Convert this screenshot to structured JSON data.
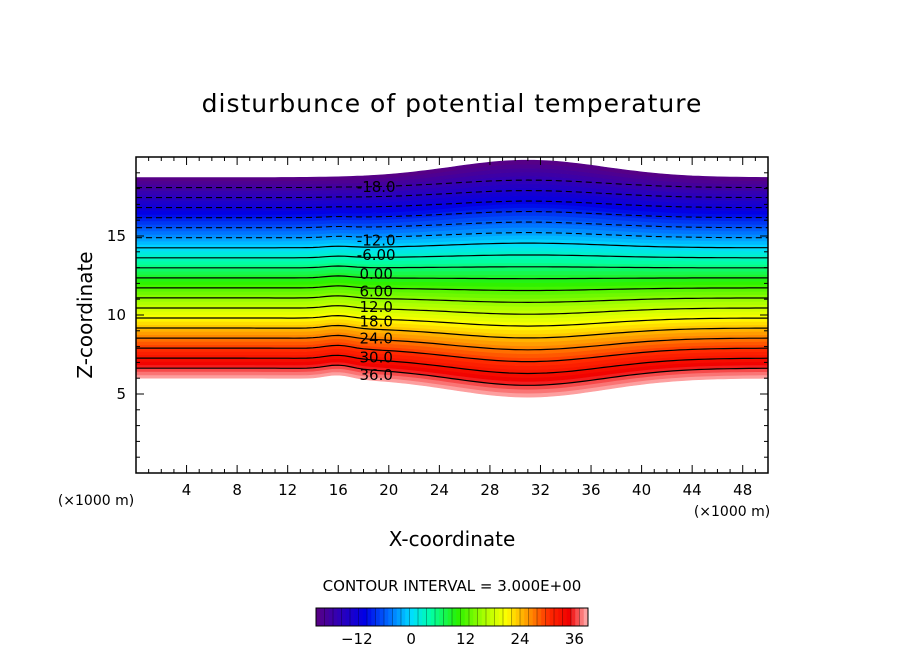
{
  "chart_data": {
    "type": "contour",
    "title": "disturbunce of potential temperature",
    "xlabel": "X-coordinate",
    "ylabel": "Z-coordinate",
    "x_unit_left": "(×1000 m)",
    "x_unit_right": "(×1000 m)",
    "xlim": [
      0,
      50
    ],
    "ylim": [
      0,
      20
    ],
    "x_ticks": [
      4,
      8,
      12,
      16,
      20,
      24,
      28,
      32,
      36,
      40,
      44,
      48
    ],
    "y_ticks": [
      5,
      10,
      15
    ],
    "contour_interval_text": "CONTOUR INTERVAL = 3.000E+00",
    "contour_levels": [
      -18,
      -15,
      -12,
      -9,
      -6,
      -3,
      0,
      3,
      6,
      9,
      12,
      15,
      18,
      21,
      24,
      27,
      30,
      33,
      36
    ],
    "contour_labels": [
      {
        "text": "-18.0",
        "x": 19,
        "z": 18.1
      },
      {
        "text": "-12.0",
        "x": 19,
        "z": 14.7
      },
      {
        "text": "-6.00",
        "x": 19,
        "z": 13.8
      },
      {
        "text": "0.00",
        "x": 19,
        "z": 12.6
      },
      {
        "text": "6.00",
        "x": 19,
        "z": 11.5
      },
      {
        "text": "12.0",
        "x": 19,
        "z": 10.5
      },
      {
        "text": "18.0",
        "x": 19,
        "z": 9.6
      },
      {
        "text": "24.0",
        "x": 19,
        "z": 8.5
      },
      {
        "text": "30.0",
        "x": 19,
        "z": 7.3
      },
      {
        "text": "36.0",
        "x": 19,
        "z": 6.2
      }
    ],
    "field": {
      "top_boundary_z": 18.7,
      "top_boundary_bump_z": 19.8,
      "bottom_boundary_z": 6.0,
      "bottom_boundary_dip_z": 4.8,
      "disturbance_center_x": 31,
      "min_value": -21,
      "max_value": 39
    },
    "colorbar": {
      "min": -21,
      "max": 39,
      "tick_values": [
        -12,
        0,
        12,
        24,
        36
      ],
      "tick_labels": [
        "−12",
        "0",
        "12",
        "24",
        "36"
      ]
    }
  }
}
